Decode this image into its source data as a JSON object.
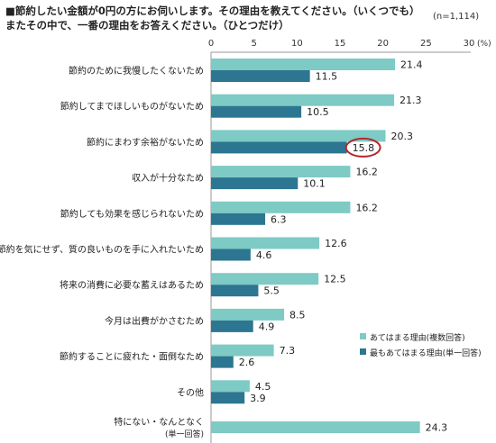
{
  "header": {
    "title_line1": "■節約したい金額が0円の方にお伺いします。その理由を教えてください。（いくつでも）",
    "title_line2": "またその中で、一番の理由をお答えください。（ひとつだけ）",
    "sample_note": "(n=1,114)"
  },
  "chart_data": {
    "type": "bar",
    "orientation": "horizontal",
    "title": "",
    "xlabel": "",
    "ylabel": "",
    "xlim": [
      0,
      30
    ],
    "x_ticks": [
      "0",
      "5",
      "10",
      "15",
      "20",
      "25",
      "30"
    ],
    "x_unit": "(%)",
    "grid": false,
    "legend_position": "right",
    "categories": [
      [
        "節約のために我慢したくないため"
      ],
      [
        "節約してまでほしいものがないため"
      ],
      [
        "節約にまわす余裕がないため"
      ],
      [
        "収入が十分なため"
      ],
      [
        "節約しても効果を感じられないため"
      ],
      [
        "節約を気にせず、質の良いものを手に入れたいため"
      ],
      [
        "将来の消費に必要な蓄えはあるため"
      ],
      [
        "今月は出費がかさむため"
      ],
      [
        "節約することに疲れた・面倒なため"
      ],
      [
        "その他"
      ],
      [
        "特にない・なんとなく",
        "(単一回答)"
      ]
    ],
    "series": [
      {
        "name": "あてはまる理由(複数回答)",
        "color": "#7ecac4",
        "values": [
          21.4,
          21.3,
          20.3,
          16.2,
          16.2,
          12.6,
          12.5,
          8.5,
          7.3,
          4.5,
          24.3
        ],
        "labels": [
          "21.4",
          "21.3",
          "20.3",
          "16.2",
          "16.2",
          "12.6",
          "12.5",
          "8.5",
          "7.3",
          "4.5",
          "24.3"
        ]
      },
      {
        "name": "最もあてはまる理由(単一回答)",
        "color": "#2c7691",
        "values": [
          11.5,
          10.5,
          15.8,
          10.1,
          6.3,
          4.6,
          5.5,
          4.9,
          2.6,
          3.9,
          null
        ],
        "labels": [
          "11.5",
          "10.5",
          "15.8",
          "10.1",
          "6.3",
          "4.6",
          "5.5",
          "4.9",
          "2.6",
          "3.9",
          ""
        ]
      }
    ],
    "highlight": {
      "series": 1,
      "category": 2,
      "color": "#b5262a"
    }
  }
}
